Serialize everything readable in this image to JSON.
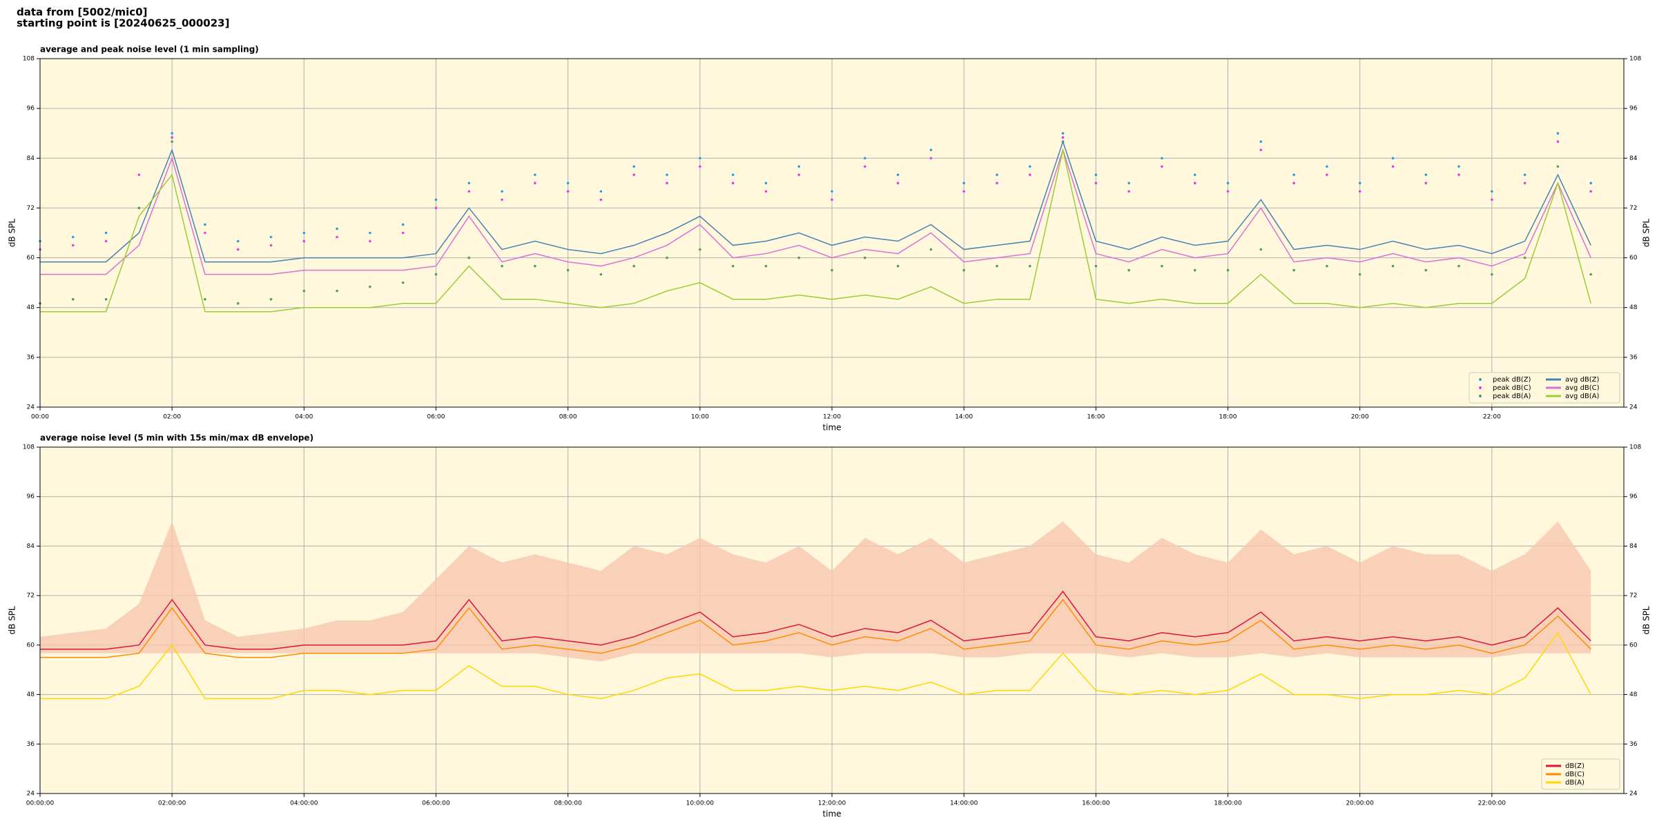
{
  "header": {
    "source": "data from [5002/mic0]",
    "start": "starting point is [20240625_000023]"
  },
  "chart_data": [
    {
      "type": "line",
      "title": "average and peak noise level (1 min sampling)",
      "xlabel": "time",
      "ylabel": "dB SPL",
      "y2label": "dB SPL",
      "xlim": [
        0,
        24
      ],
      "xticks": [
        {
          "value": 0,
          "label": "00:00"
        },
        {
          "value": 2,
          "label": "02:00"
        },
        {
          "value": 4,
          "label": "04:00"
        },
        {
          "value": 6,
          "label": "06:00"
        },
        {
          "value": 8,
          "label": "08:00"
        },
        {
          "value": 10,
          "label": "10:00"
        },
        {
          "value": 12,
          "label": "12:00"
        },
        {
          "value": 14,
          "label": "14:00"
        },
        {
          "value": 16,
          "label": "16:00"
        },
        {
          "value": 18,
          "label": "18:00"
        },
        {
          "value": 20,
          "label": "20:00"
        },
        {
          "value": 22,
          "label": "22:00"
        }
      ],
      "ylim": [
        24,
        108
      ],
      "yticks": [
        24,
        36,
        48,
        60,
        72,
        84,
        96,
        108
      ],
      "y2lim": [
        24,
        108
      ],
      "y2ticks": [
        24,
        36,
        48,
        60,
        72,
        84,
        96,
        108
      ],
      "grid": true,
      "legend": "lower right",
      "legend_columns": 2,
      "x": [
        0,
        0.5,
        1,
        1.5,
        2,
        2.5,
        3,
        3.5,
        4,
        4.5,
        5,
        5.5,
        6,
        6.5,
        7,
        7.5,
        8,
        8.5,
        9,
        9.5,
        10,
        10.5,
        11,
        11.5,
        12,
        12.5,
        13,
        13.5,
        14,
        14.5,
        15,
        15.5,
        16,
        16.5,
        17,
        17.5,
        18,
        18.5,
        19,
        19.5,
        20,
        20.5,
        21,
        21.5,
        22,
        22.5,
        23,
        23.5
      ],
      "series": [
        {
          "name": "peak dB(Z)",
          "style": "scatter",
          "color": "#2b9fd8",
          "values": [
            64,
            65,
            66,
            72,
            90,
            68,
            64,
            65,
            66,
            67,
            66,
            68,
            74,
            78,
            76,
            80,
            78,
            76,
            82,
            80,
            84,
            80,
            78,
            82,
            76,
            84,
            80,
            86,
            78,
            80,
            82,
            90,
            80,
            78,
            84,
            80,
            78,
            88,
            80,
            82,
            78,
            84,
            80,
            82,
            76,
            80,
            90,
            78
          ]
        },
        {
          "name": "peak dB(C)",
          "style": "scatter",
          "color": "#e040e0",
          "values": [
            62,
            63,
            64,
            80,
            89,
            66,
            62,
            63,
            64,
            65,
            64,
            66,
            72,
            76,
            74,
            78,
            76,
            74,
            80,
            78,
            82,
            78,
            76,
            80,
            74,
            82,
            78,
            84,
            76,
            78,
            80,
            89,
            78,
            76,
            82,
            78,
            76,
            86,
            78,
            80,
            76,
            82,
            78,
            80,
            74,
            78,
            88,
            76
          ]
        },
        {
          "name": "peak dB(A)",
          "style": "scatter",
          "color": "#5a9a5a",
          "values": [
            49,
            50,
            50,
            72,
            88,
            50,
            49,
            50,
            52,
            52,
            53,
            54,
            56,
            60,
            58,
            58,
            57,
            56,
            58,
            60,
            62,
            58,
            58,
            60,
            57,
            60,
            58,
            62,
            57,
            58,
            58,
            88,
            58,
            57,
            58,
            57,
            57,
            62,
            57,
            58,
            56,
            58,
            57,
            58,
            56,
            60,
            82,
            56
          ]
        },
        {
          "name": "avg dB(Z)",
          "style": "line",
          "color": "#4682b4",
          "values": [
            59,
            59,
            59,
            66,
            86,
            59,
            59,
            59,
            60,
            60,
            60,
            60,
            61,
            72,
            62,
            64,
            62,
            61,
            63,
            66,
            70,
            63,
            64,
            66,
            63,
            65,
            64,
            68,
            62,
            63,
            64,
            88,
            64,
            62,
            65,
            63,
            64,
            74,
            62,
            63,
            62,
            64,
            62,
            63,
            61,
            64,
            80,
            63
          ]
        },
        {
          "name": "avg dB(C)",
          "style": "line",
          "color": "#da70d6",
          "values": [
            56,
            56,
            56,
            63,
            84,
            56,
            56,
            56,
            57,
            57,
            57,
            57,
            58,
            70,
            59,
            61,
            59,
            58,
            60,
            63,
            68,
            60,
            61,
            63,
            60,
            62,
            61,
            66,
            59,
            60,
            61,
            86,
            61,
            59,
            62,
            60,
            61,
            72,
            59,
            60,
            59,
            61,
            59,
            60,
            58,
            61,
            78,
            60
          ]
        },
        {
          "name": "avg dB(A)",
          "style": "line",
          "color": "#9acd32",
          "values": [
            47,
            47,
            47,
            70,
            80,
            47,
            47,
            47,
            48,
            48,
            48,
            49,
            49,
            58,
            50,
            50,
            49,
            48,
            49,
            52,
            54,
            50,
            50,
            51,
            50,
            51,
            50,
            53,
            49,
            50,
            50,
            86,
            50,
            49,
            50,
            49,
            49,
            56,
            49,
            49,
            48,
            49,
            48,
            49,
            49,
            55,
            78,
            49
          ]
        }
      ]
    },
    {
      "type": "line",
      "title": "average noise level (5 min with 15s min/max dB envelope)",
      "xlabel": "time",
      "ylabel": "dB SPL",
      "y2label": "dB SPL",
      "xlim": [
        0,
        24
      ],
      "xticks": [
        {
          "value": 0,
          "label": "00:00:00"
        },
        {
          "value": 2,
          "label": "02:00:00"
        },
        {
          "value": 4,
          "label": "04:00:00"
        },
        {
          "value": 6,
          "label": "06:00:00"
        },
        {
          "value": 8,
          "label": "08:00:00"
        },
        {
          "value": 10,
          "label": "10:00:00"
        },
        {
          "value": 12,
          "label": "12:00:00"
        },
        {
          "value": 14,
          "label": "14:00:00"
        },
        {
          "value": 16,
          "label": "16:00:00"
        },
        {
          "value": 18,
          "label": "18:00:00"
        },
        {
          "value": 20,
          "label": "20:00:00"
        },
        {
          "value": 22,
          "label": "22:00:00"
        }
      ],
      "ylim": [
        24,
        108
      ],
      "yticks": [
        24,
        36,
        48,
        60,
        72,
        84,
        96,
        108
      ],
      "y2lim": [
        24,
        108
      ],
      "y2ticks": [
        24,
        36,
        48,
        60,
        72,
        84,
        96,
        108
      ],
      "grid": true,
      "legend": "lower right",
      "legend_columns": 1,
      "x": [
        0,
        0.5,
        1,
        1.5,
        2,
        2.5,
        3,
        3.5,
        4,
        4.5,
        5,
        5.5,
        6,
        6.5,
        7,
        7.5,
        8,
        8.5,
        9,
        9.5,
        10,
        10.5,
        11,
        11.5,
        12,
        12.5,
        13,
        13.5,
        14,
        14.5,
        15,
        15.5,
        16,
        16.5,
        17,
        17.5,
        18,
        18.5,
        19,
        19.5,
        20,
        20.5,
        21,
        21.5,
        22,
        22.5,
        23,
        23.5
      ],
      "series": [
        {
          "name": "dB(Z)",
          "style": "line",
          "color": "#dc143c",
          "envelope_color": "#f7c7b0",
          "lower": [
            58,
            58,
            58,
            58,
            58,
            58,
            58,
            58,
            58,
            58,
            58,
            58,
            58,
            58,
            58,
            58,
            57,
            56,
            58,
            58,
            58,
            58,
            58,
            58,
            57,
            58,
            58,
            58,
            57,
            57,
            58,
            58,
            58,
            57,
            58,
            57,
            57,
            58,
            57,
            58,
            57,
            57,
            57,
            57,
            57,
            58,
            58,
            58
          ],
          "upper": [
            62,
            63,
            64,
            70,
            90,
            66,
            62,
            63,
            64,
            66,
            66,
            68,
            76,
            84,
            80,
            82,
            80,
            78,
            84,
            82,
            86,
            82,
            80,
            84,
            78,
            86,
            82,
            86,
            80,
            82,
            84,
            90,
            82,
            80,
            86,
            82,
            80,
            88,
            82,
            84,
            80,
            84,
            82,
            82,
            78,
            82,
            90,
            78
          ],
          "values": [
            59,
            59,
            59,
            60,
            71,
            60,
            59,
            59,
            60,
            60,
            60,
            60,
            61,
            71,
            61,
            62,
            61,
            60,
            62,
            65,
            68,
            62,
            63,
            65,
            62,
            64,
            63,
            66,
            61,
            62,
            63,
            73,
            62,
            61,
            63,
            62,
            63,
            68,
            61,
            62,
            61,
            62,
            61,
            62,
            60,
            62,
            69,
            61
          ]
        },
        {
          "name": "dB(C)",
          "style": "line",
          "color": "#ff8c00",
          "values": [
            57,
            57,
            57,
            58,
            69,
            58,
            57,
            57,
            58,
            58,
            58,
            58,
            59,
            69,
            59,
            60,
            59,
            58,
            60,
            63,
            66,
            60,
            61,
            63,
            60,
            62,
            61,
            64,
            59,
            60,
            61,
            71,
            60,
            59,
            61,
            60,
            61,
            66,
            59,
            60,
            59,
            60,
            59,
            60,
            58,
            60,
            67,
            59
          ]
        },
        {
          "name": "dB(A)",
          "style": "line",
          "color": "#ffd700",
          "values": [
            47,
            47,
            47,
            50,
            60,
            47,
            47,
            47,
            49,
            49,
            48,
            49,
            49,
            55,
            50,
            50,
            48,
            47,
            49,
            52,
            53,
            49,
            49,
            50,
            49,
            50,
            49,
            51,
            48,
            49,
            49,
            58,
            49,
            48,
            49,
            48,
            49,
            53,
            48,
            48,
            47,
            48,
            48,
            49,
            48,
            52,
            63,
            48
          ]
        }
      ]
    }
  ]
}
